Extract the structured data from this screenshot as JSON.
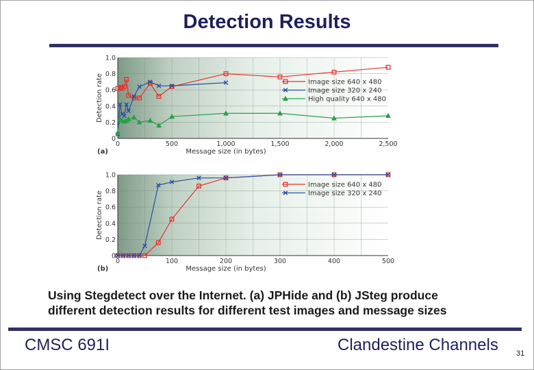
{
  "slide": {
    "title": "Detection Results",
    "caption_line1": "Using Stegdetect over the Internet. (a) JPHide and (b) JSteg produce",
    "caption_line2": "different detection results for different test images and message sizes",
    "footer_left": "CMSC 691I",
    "footer_right": "Clandestine Channels",
    "page_number": "31"
  },
  "chart_data": [
    {
      "type": "line",
      "panel_label": "(a)",
      "xlabel": "Message size (in bytes)",
      "ylabel": "Detection rate",
      "xlim": [
        0,
        2500
      ],
      "ylim": [
        0,
        1.0
      ],
      "x_ticks": [
        0,
        500,
        1000,
        1500,
        2000,
        2500
      ],
      "x_tick_labels": [
        "0",
        "500",
        "1,000",
        "1,500",
        "2,000",
        "2,500"
      ],
      "y_ticks": [
        0,
        0.2,
        0.4,
        0.6,
        0.8,
        1.0
      ],
      "y_tick_labels": [
        "0",
        "0.2",
        "0.4",
        "0.6",
        "0.8",
        "1.0"
      ],
      "grid": true,
      "legend_position": "right",
      "series": [
        {
          "name": "Image size 640 x 480",
          "color": "#e8322b",
          "marker": "square",
          "points": [
            [
              0,
              0.62
            ],
            [
              20,
              0.63
            ],
            [
              40,
              0.62
            ],
            [
              60,
              0.64
            ],
            [
              80,
              0.73
            ],
            [
              100,
              0.53
            ],
            [
              150,
              0.5
            ],
            [
              200,
              0.5
            ],
            [
              300,
              0.68
            ],
            [
              380,
              0.52
            ],
            [
              500,
              0.64
            ],
            [
              1000,
              0.8
            ],
            [
              1500,
              0.76
            ],
            [
              2000,
              0.82
            ],
            [
              2500,
              0.88
            ]
          ]
        },
        {
          "name": "Image size 320 x 240",
          "color": "#2a4fa0",
          "marker": "x",
          "points": [
            [
              0,
              0.05
            ],
            [
              20,
              0.42
            ],
            [
              40,
              0.3
            ],
            [
              60,
              0.28
            ],
            [
              80,
              0.42
            ],
            [
              100,
              0.34
            ],
            [
              150,
              0.52
            ],
            [
              200,
              0.64
            ],
            [
              300,
              0.7
            ],
            [
              380,
              0.65
            ],
            [
              500,
              0.65
            ],
            [
              1000,
              0.69
            ]
          ]
        },
        {
          "name": "High quality 640 x 480",
          "color": "#28a046",
          "marker": "triangle",
          "points": [
            [
              0,
              0.07
            ],
            [
              20,
              0.24
            ],
            [
              40,
              0.22
            ],
            [
              60,
              0.21
            ],
            [
              80,
              0.22
            ],
            [
              100,
              0.24
            ],
            [
              150,
              0.26
            ],
            [
              200,
              0.2
            ],
            [
              300,
              0.22
            ],
            [
              380,
              0.16
            ],
            [
              500,
              0.27
            ],
            [
              1000,
              0.31
            ],
            [
              1500,
              0.31
            ],
            [
              2000,
              0.25
            ],
            [
              2500,
              0.28
            ]
          ]
        }
      ]
    },
    {
      "type": "line",
      "panel_label": "(b)",
      "xlabel": "Message size (in bytes)",
      "ylabel": "Detection rate",
      "xlim": [
        0,
        500
      ],
      "ylim": [
        0,
        1.0
      ],
      "x_ticks": [
        0,
        100,
        200,
        300,
        400,
        500
      ],
      "x_tick_labels": [
        "0",
        "100",
        "200",
        "300",
        "400",
        "500"
      ],
      "y_ticks": [
        0,
        0.2,
        0.4,
        0.6,
        0.8,
        1.0
      ],
      "y_tick_labels": [
        "0",
        "0.2",
        "0.4",
        "0.6",
        "0.8",
        "1.0"
      ],
      "grid": true,
      "legend_position": "right",
      "series": [
        {
          "name": "Image size 640 x 480",
          "color": "#e8322b",
          "marker": "square",
          "points": [
            [
              0,
              0
            ],
            [
              10,
              0
            ],
            [
              20,
              0
            ],
            [
              30,
              0
            ],
            [
              40,
              0
            ],
            [
              50,
              0
            ],
            [
              75,
              0.16
            ],
            [
              100,
              0.45
            ],
            [
              150,
              0.86
            ],
            [
              200,
              0.96
            ],
            [
              300,
              1.0
            ],
            [
              400,
              1.0
            ],
            [
              500,
              1.0
            ]
          ]
        },
        {
          "name": "Image size 320 x 240",
          "color": "#2a4fa0",
          "marker": "x",
          "points": [
            [
              0,
              0
            ],
            [
              10,
              0
            ],
            [
              20,
              0
            ],
            [
              30,
              0
            ],
            [
              40,
              0
            ],
            [
              50,
              0.12
            ],
            [
              75,
              0.87
            ],
            [
              100,
              0.91
            ],
            [
              150,
              0.96
            ],
            [
              200,
              0.96
            ],
            [
              300,
              1.0
            ],
            [
              400,
              1.0
            ],
            [
              500,
              1.0
            ]
          ]
        }
      ]
    }
  ]
}
